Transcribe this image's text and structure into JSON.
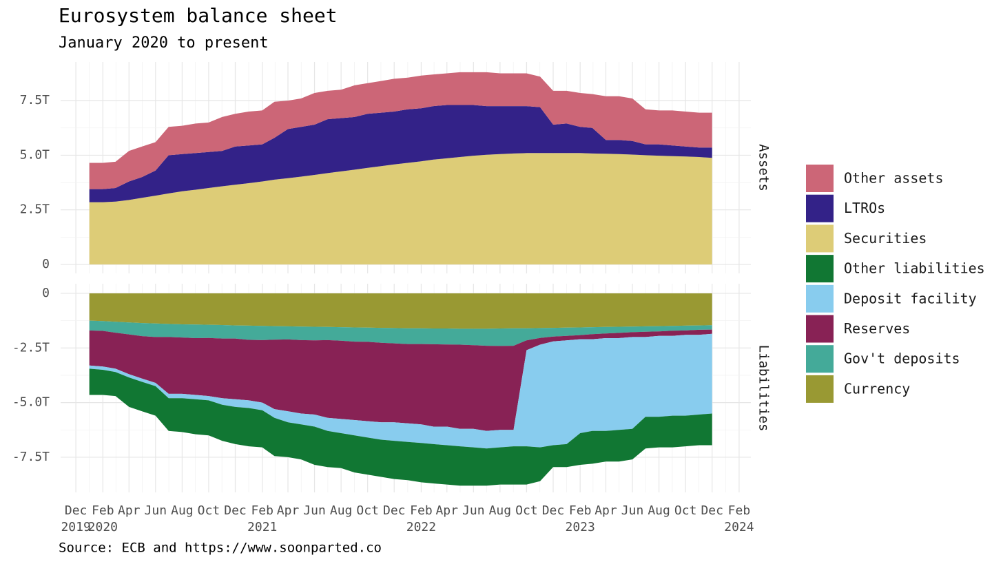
{
  "chart_data": {
    "type": "area",
    "title": "Eurosystem balance sheet",
    "subtitle": "January 2020 to present",
    "source": "Source: ECB and https://www.soonparted.co",
    "grid": true,
    "x": [
      "2020-01",
      "2020-02",
      "2020-03",
      "2020-04",
      "2020-05",
      "2020-06",
      "2020-07",
      "2020-08",
      "2020-09",
      "2020-10",
      "2020-11",
      "2020-12",
      "2021-01",
      "2021-02",
      "2021-03",
      "2021-04",
      "2021-05",
      "2021-06",
      "2021-07",
      "2021-08",
      "2021-09",
      "2021-10",
      "2021-11",
      "2021-12",
      "2022-01",
      "2022-02",
      "2022-03",
      "2022-04",
      "2022-05",
      "2022-06",
      "2022-07",
      "2022-08",
      "2022-09",
      "2022-10",
      "2022-11",
      "2022-12",
      "2023-01",
      "2023-02",
      "2023-03",
      "2023-04",
      "2023-05",
      "2023-06",
      "2023-07",
      "2023-08",
      "2023-09",
      "2023-10",
      "2023-11",
      "2023-12"
    ],
    "xlim": [
      "2019-10-27",
      "2024-02-28"
    ],
    "xticks": [
      {
        "value": "2019-12",
        "label": "Dec",
        "year": "2019"
      },
      {
        "value": "2020-02",
        "label": "Feb",
        "year": "2020"
      },
      {
        "value": "2020-04",
        "label": "Apr"
      },
      {
        "value": "2020-06",
        "label": "Jun"
      },
      {
        "value": "2020-08",
        "label": "Aug"
      },
      {
        "value": "2020-10",
        "label": "Oct"
      },
      {
        "value": "2020-12",
        "label": "Dec"
      },
      {
        "value": "2021-02",
        "label": "Feb",
        "year": "2021"
      },
      {
        "value": "2021-04",
        "label": "Apr"
      },
      {
        "value": "2021-06",
        "label": "Jun"
      },
      {
        "value": "2021-08",
        "label": "Aug"
      },
      {
        "value": "2021-10",
        "label": "Oct"
      },
      {
        "value": "2021-12",
        "label": "Dec"
      },
      {
        "value": "2022-02",
        "label": "Feb",
        "year": "2022"
      },
      {
        "value": "2022-04",
        "label": "Apr"
      },
      {
        "value": "2022-06",
        "label": "Jun"
      },
      {
        "value": "2022-08",
        "label": "Aug"
      },
      {
        "value": "2022-10",
        "label": "Oct"
      },
      {
        "value": "2022-12",
        "label": "Dec"
      },
      {
        "value": "2023-02",
        "label": "Feb",
        "year": "2023"
      },
      {
        "value": "2023-04",
        "label": "Apr"
      },
      {
        "value": "2023-06",
        "label": "Jun"
      },
      {
        "value": "2023-08",
        "label": "Aug"
      },
      {
        "value": "2023-10",
        "label": "Oct"
      },
      {
        "value": "2023-12",
        "label": "Dec"
      },
      {
        "value": "2024-02",
        "label": "Feb",
        "year": "2024"
      }
    ],
    "panels": [
      {
        "label": "Assets",
        "ylim": [
          -0.41,
          9.27
        ],
        "yticks": [
          0,
          {
            "value": 2.5,
            "label": "2.5T"
          },
          {
            "value": 5,
            "label": "5.0T"
          },
          {
            "value": 7.5,
            "label": "7.5T"
          }
        ],
        "series": [
          {
            "name": "Other assets",
            "color": "#CC6677",
            "values": [
              1.2,
              1.2,
              1.2,
              1.4,
              1.4,
              1.3,
              1.3,
              1.3,
              1.35,
              1.35,
              1.55,
              1.5,
              1.55,
              1.55,
              1.65,
              1.3,
              1.3,
              1.45,
              1.3,
              1.3,
              1.45,
              1.4,
              1.45,
              1.5,
              1.45,
              1.5,
              1.45,
              1.45,
              1.5,
              1.5,
              1.55,
              1.5,
              1.5,
              1.5,
              1.4,
              1.55,
              1.5,
              1.55,
              1.55,
              2.0,
              2.0,
              1.95,
              1.6,
              1.55,
              1.6,
              1.6,
              1.6,
              1.6
            ]
          },
          {
            "name": "LTROs",
            "color": "#332288",
            "values": [
              0.6,
              0.6,
              0.62,
              0.85,
              0.95,
              1.15,
              1.75,
              1.7,
              1.68,
              1.65,
              1.62,
              1.75,
              1.73,
              1.7,
              1.92,
              2.25,
              2.28,
              2.3,
              2.47,
              2.44,
              2.41,
              2.48,
              2.45,
              2.42,
              2.45,
              2.43,
              2.45,
              2.44,
              2.38,
              2.32,
              2.23,
              2.2,
              2.17,
              2.15,
              2.1,
              1.3,
              1.35,
              1.2,
              1.17,
              0.63,
              0.65,
              0.62,
              0.5,
              0.52,
              0.49,
              0.46,
              0.43,
              0.47
            ]
          },
          {
            "name": "Securities",
            "color": "#DDCC77",
            "values": [
              2.85,
              2.85,
              2.88,
              2.95,
              3.05,
              3.15,
              3.25,
              3.35,
              3.42,
              3.5,
              3.58,
              3.65,
              3.72,
              3.8,
              3.88,
              3.95,
              4.02,
              4.1,
              4.18,
              4.26,
              4.34,
              4.42,
              4.5,
              4.58,
              4.65,
              4.72,
              4.8,
              4.86,
              4.92,
              4.98,
              5.02,
              5.05,
              5.08,
              5.1,
              5.1,
              5.1,
              5.1,
              5.1,
              5.08,
              5.07,
              5.05,
              5.03,
              5.0,
              4.98,
              4.96,
              4.94,
              4.92,
              4.88
            ]
          }
        ]
      },
      {
        "label": "Liabilities",
        "ylim": [
          -9.11,
          0.44
        ],
        "yticks": [
          0,
          {
            "value": -2.5,
            "label": "-2.5T"
          },
          {
            "value": -5,
            "label": "-5.0T"
          },
          {
            "value": -7.5,
            "label": "-7.5T"
          }
        ],
        "series": [
          {
            "name": "Other liabilities",
            "color": "#117733",
            "values": [
              -1.2,
              -1.15,
              -1.1,
              -1.35,
              -1.35,
              -1.35,
              -1.5,
              -1.55,
              -1.6,
              -1.6,
              -1.65,
              -1.7,
              -1.75,
              -1.7,
              -1.75,
              -1.6,
              -1.6,
              -1.75,
              -1.65,
              -1.6,
              -1.7,
              -1.7,
              -1.7,
              -1.75,
              -1.75,
              -1.8,
              -1.8,
              -1.8,
              -1.8,
              -1.75,
              -1.7,
              -1.7,
              -1.75,
              -1.75,
              -1.55,
              -1.0,
              -1.05,
              -1.45,
              -1.5,
              -1.4,
              -1.45,
              -1.4,
              -1.45,
              -1.4,
              -1.45,
              -1.4,
              -1.4,
              -1.45
            ]
          },
          {
            "name": "Deposit facility",
            "color": "#88CCEE",
            "values": [
              -0.15,
              -0.15,
              -0.15,
              -0.15,
              -0.15,
              -0.15,
              -0.2,
              -0.2,
              -0.2,
              -0.2,
              -0.3,
              -0.35,
              -0.35,
              -0.35,
              -0.4,
              -0.5,
              -0.5,
              -0.55,
              -0.6,
              -0.65,
              -0.7,
              -0.75,
              -0.8,
              -0.85,
              -0.85,
              -0.85,
              -0.8,
              -0.85,
              -0.8,
              -0.85,
              -0.8,
              -0.8,
              -0.75,
              -4.4,
              -4.7,
              -4.75,
              -4.75,
              -4.3,
              -4.2,
              -4.25,
              -4.2,
              -4.2,
              -3.65,
              -3.7,
              -3.65,
              -3.7,
              -3.65,
              -3.65
            ]
          },
          {
            "name": "Reserves",
            "color": "#882255",
            "values": [
              -1.6,
              -1.63,
              -1.65,
              -1.82,
              -1.94,
              -2.1,
              -2.6,
              -2.58,
              -2.6,
              -2.66,
              -2.73,
              -2.78,
              -2.77,
              -2.86,
              -3.18,
              -3.29,
              -3.36,
              -3.4,
              -3.56,
              -3.58,
              -3.59,
              -3.63,
              -3.64,
              -3.61,
              -3.63,
              -3.68,
              -3.77,
              -3.76,
              -3.85,
              -3.83,
              -3.9,
              -3.84,
              -3.85,
              -0.45,
              -0.31,
              -0.22,
              -0.2,
              -0.19,
              -0.23,
              -0.21,
              -0.24,
              -0.22,
              -0.24,
              -0.21,
              -0.24,
              -0.2,
              -0.23,
              -0.19
            ]
          },
          {
            "name": "Gov't deposits",
            "color": "#44AA99",
            "values": [
              -0.45,
              -0.45,
              -0.5,
              -0.55,
              -0.6,
              -0.62,
              -0.6,
              -0.6,
              -0.62,
              -0.6,
              -0.62,
              -0.6,
              -0.65,
              -0.65,
              -0.62,
              -0.6,
              -0.62,
              -0.62,
              -0.6,
              -0.62,
              -0.65,
              -0.65,
              -0.68,
              -0.7,
              -0.72,
              -0.72,
              -0.72,
              -0.73,
              -0.73,
              -0.75,
              -0.78,
              -0.8,
              -0.8,
              -0.55,
              -0.45,
              -0.4,
              -0.38,
              -0.35,
              -0.32,
              -0.3,
              -0.28,
              -0.26,
              -0.25,
              -0.24,
              -0.22,
              -0.22,
              -0.2,
              -0.2
            ]
          },
          {
            "name": "Currency",
            "color": "#999933",
            "values": [
              -1.25,
              -1.27,
              -1.3,
              -1.33,
              -1.36,
              -1.38,
              -1.4,
              -1.42,
              -1.43,
              -1.44,
              -1.45,
              -1.47,
              -1.48,
              -1.49,
              -1.5,
              -1.51,
              -1.52,
              -1.53,
              -1.54,
              -1.55,
              -1.56,
              -1.57,
              -1.58,
              -1.59,
              -1.6,
              -1.6,
              -1.61,
              -1.61,
              -1.62,
              -1.62,
              -1.62,
              -1.61,
              -1.6,
              -1.6,
              -1.59,
              -1.58,
              -1.57,
              -1.56,
              -1.55,
              -1.54,
              -1.53,
              -1.52,
              -1.51,
              -1.5,
              -1.49,
              -1.48,
              -1.47,
              -1.46
            ]
          }
        ]
      }
    ]
  }
}
